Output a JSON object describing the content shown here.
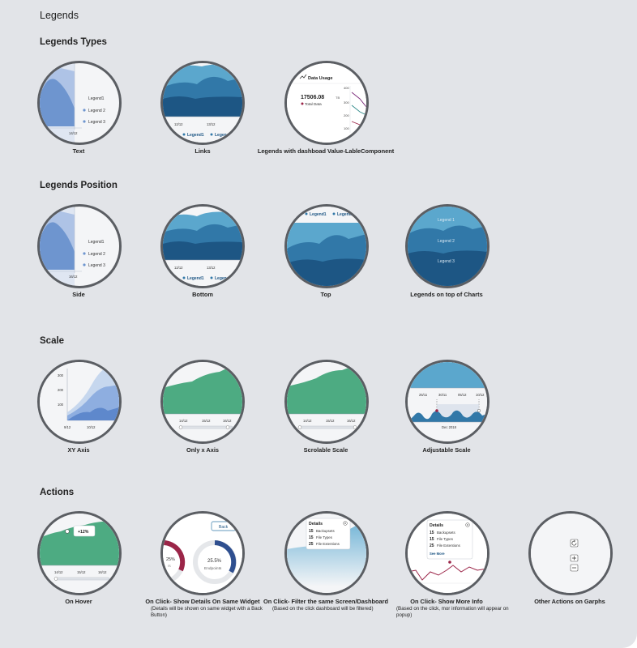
{
  "page_title": "Legends",
  "sections": {
    "legend_types": "Legends Types",
    "legend_position": "Legends Position",
    "scale": "Scale",
    "actions": "Actions"
  },
  "captions": {
    "text": "Text",
    "links": "Links",
    "dashboard_value": "Legends with dashboad Value-LableComponent",
    "side": "Side",
    "bottom": "Bottom",
    "top": "Top",
    "on_top": "Legends on top of Charts",
    "xy_axis": "XY Axis",
    "only_x": "Only x Axis",
    "scrolable": "Scrolable Scale",
    "adjustable": "Adjustable Scale",
    "on_hover": "On Hover",
    "same_widget": "On Click- Show Details On Same Widget",
    "same_widget_sub": "(Details will be shown on same widget with a Back Button)",
    "filter": "On Click- Filter the same Screen/Dashboard",
    "filter_sub": "(Based on the click dashboard will be filtered)",
    "more_info": "On Click- Show More Info",
    "more_info_sub": "(Based on the click, mor information will appear on popup)",
    "other": "Other Actions on Garphs"
  },
  "thumb": {
    "legend1": "Legend1",
    "legend2": "Legend 2",
    "legend3": "Legend 3",
    "legend_1_spaced": "Legend 1",
    "date_1412": "14/12",
    "date_1312": "13/12",
    "date_1212": "12/12",
    "date_1612": "16/12",
    "date_1512": "15/12",
    "date_912": "9/12",
    "date_1012": "10/12",
    "data_usage": "Data Usage",
    "data_usage_value": "17506.08",
    "data_usage_unit": "TB",
    "total_data": "Total Data",
    "ax_400": "400",
    "ax_300": "300",
    "ax_200": "200",
    "ax_100": "100",
    "d_2511": "25/11",
    "d_3011": "30/11",
    "d_0512": "05/12",
    "d_1012": "10/12",
    "dec_2018": "Dec 2018",
    "hover_value": "+12%",
    "back": "Back",
    "pct_left": "25%",
    "pct_left_sub": "rs",
    "pct_right": "25.5%",
    "endpoints": "Endpoints",
    "details": "Details",
    "backupsets_n": "15",
    "backupsets": "Backupsets",
    "filetypes_n": "15",
    "filetypes": "File Types",
    "fileext_n": "25",
    "fileext": "File Extentions",
    "see_more": "See More"
  },
  "colors": {
    "background": "#e2e4e8",
    "blue_light": "#5ba7cd",
    "blue_mid": "#3178a8",
    "blue_dark": "#1d5684",
    "side_blue": "#7da2d6",
    "green": "#4dab82",
    "crimson": "#9b2548",
    "border": "#5b5e63"
  },
  "icons": [
    "refresh-icon",
    "zoom-in-icon",
    "zoom-out-icon",
    "close-icon",
    "trend-icon"
  ]
}
